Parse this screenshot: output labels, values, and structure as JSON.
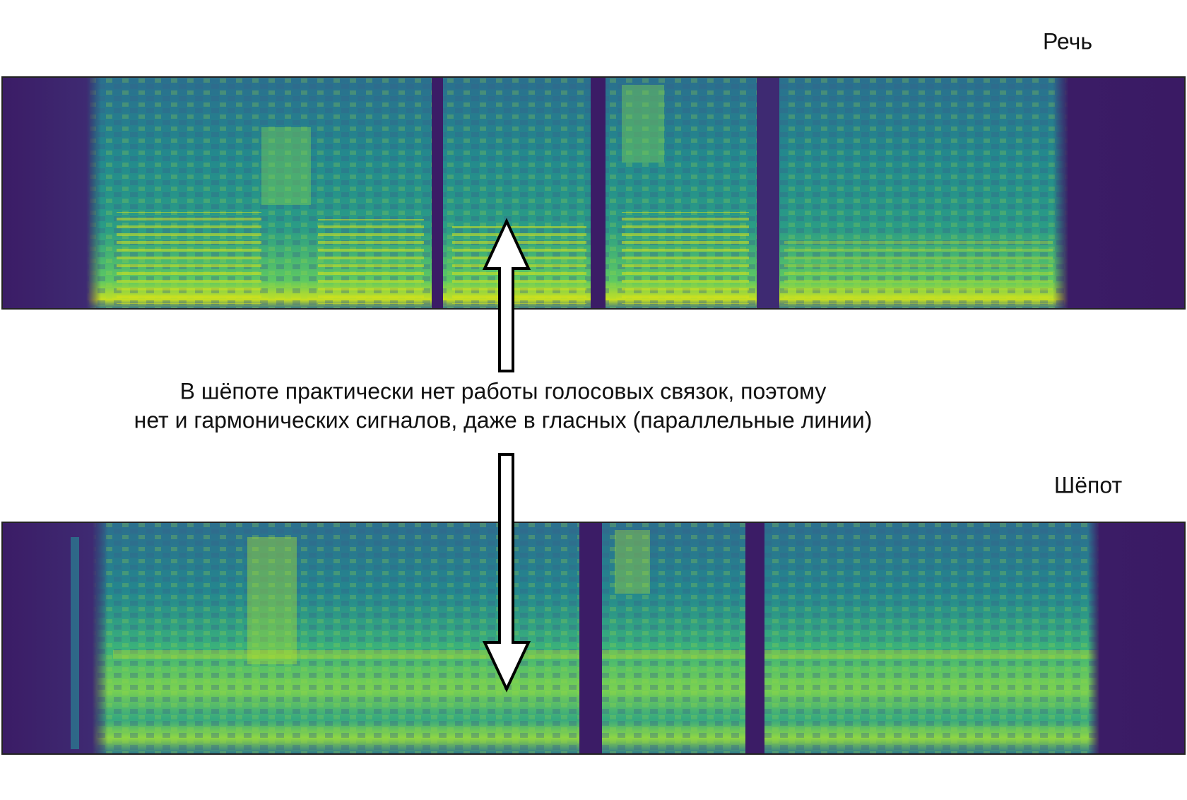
{
  "labels": {
    "speech": "Речь",
    "whisper": "Шёпот"
  },
  "caption": {
    "lines": [
      "В шёпоте практически нет работы голосовых связок, поэтому",
      "нет и гармонических сигналов, даже в гласных (параллельные линии)"
    ]
  }
}
